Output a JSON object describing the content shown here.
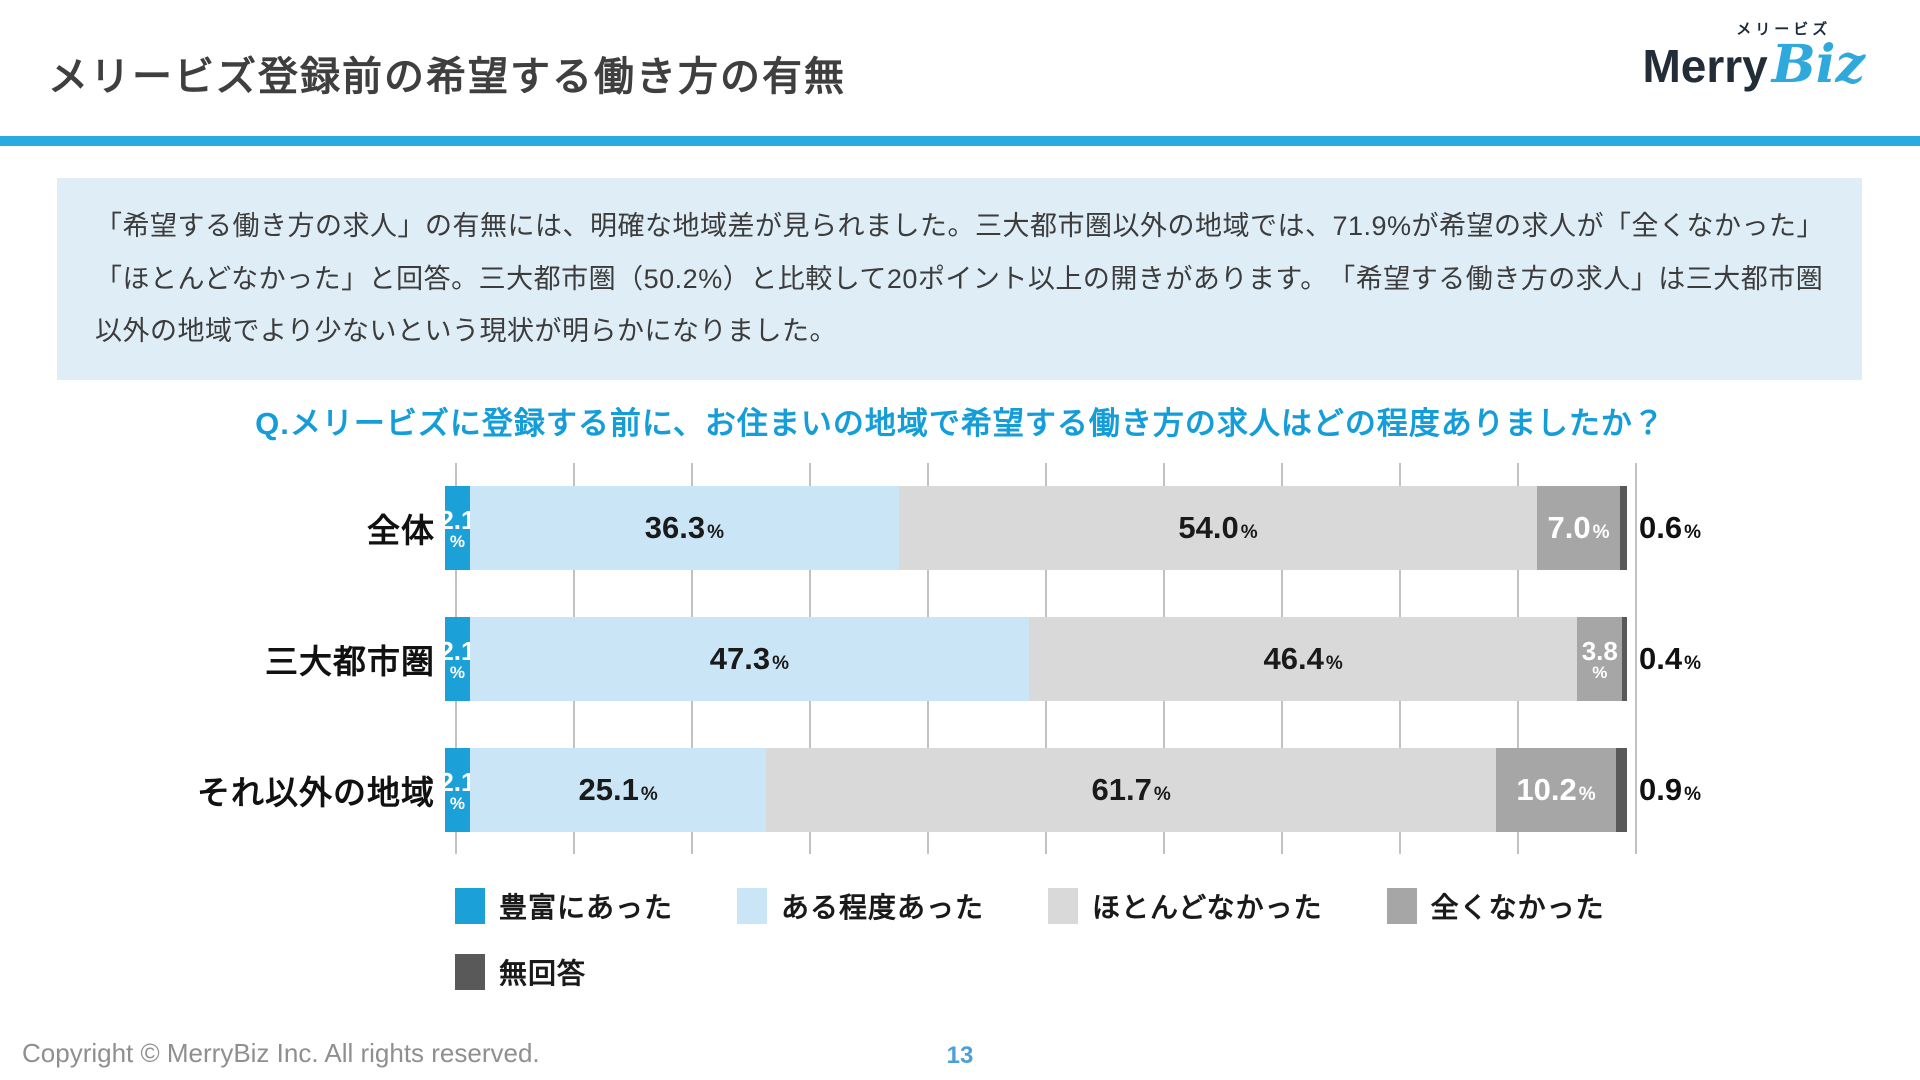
{
  "header": {
    "title": "メリービズ登録前の希望する働き方の有無",
    "logo": {
      "kana": "メリービズ",
      "merry": "Merry",
      "biz": "Biz"
    }
  },
  "summary": {
    "text": "「希望する働き方の求人」の有無には、明確な地域差が見られました。三大都市圏以外の地域では、71.9%が希望の求人が「全くなかった」「ほとんどなかった」と回答。三大都市圏（50.2%）と比較して20ポイント以上の開きがあります。　「希望する働き方の求人」は三大都市圏以外の地域でより少ないという現状が明らかになりました。"
  },
  "question": "Q.メリービズに登録する前に、お住まいの地域で希望する働き方の求人はどの程度ありましたか？",
  "chart_data": {
    "type": "bar",
    "orientation": "horizontal-stacked",
    "unit": "%",
    "xlim": [
      0,
      100
    ],
    "gridline_step": 10,
    "grid": true,
    "legend_position": "bottom",
    "categories": [
      "全体",
      "三大都市圏",
      "それ以外の地域"
    ],
    "series": [
      {
        "name": "豊富にあった",
        "color": "#1ba0d8",
        "text_color": "#ffffff",
        "values": [
          2.1,
          2.1,
          2.1
        ]
      },
      {
        "name": "ある程度あった",
        "color": "#c9e5f6",
        "text_color": "#1a1a1a",
        "values": [
          36.3,
          47.3,
          25.1
        ]
      },
      {
        "name": "ほとんどなかった",
        "color": "#d9d9d9",
        "text_color": "#1a1a1a",
        "values": [
          54.0,
          46.4,
          61.7
        ]
      },
      {
        "name": "全くなかった",
        "color": "#a6a6a6",
        "text_color": "#ffffff",
        "values": [
          7.0,
          3.8,
          10.2
        ]
      },
      {
        "name": "無回答",
        "color": "#595959",
        "text_color": "#1a1a1a",
        "values": [
          0.6,
          0.4,
          0.9
        ]
      }
    ],
    "label_modes": [
      [
        "stacked",
        "inline",
        "inline",
        "inline",
        "outside"
      ],
      [
        "stacked",
        "inline",
        "inline",
        "stacked",
        "outside"
      ],
      [
        "stacked",
        "inline",
        "inline",
        "inline",
        "outside"
      ]
    ],
    "legend_rows": [
      [
        0,
        1,
        2,
        3
      ],
      [
        4
      ]
    ]
  },
  "colors": {
    "accent_rule": "#29abe2",
    "question_blue": "#149dd8",
    "summary_bg": "#deedf6",
    "page_number_blue": "#4d9fd8"
  },
  "footer": {
    "copyright": "Copyright © MerryBiz Inc. All rights reserved.",
    "page": "13"
  }
}
